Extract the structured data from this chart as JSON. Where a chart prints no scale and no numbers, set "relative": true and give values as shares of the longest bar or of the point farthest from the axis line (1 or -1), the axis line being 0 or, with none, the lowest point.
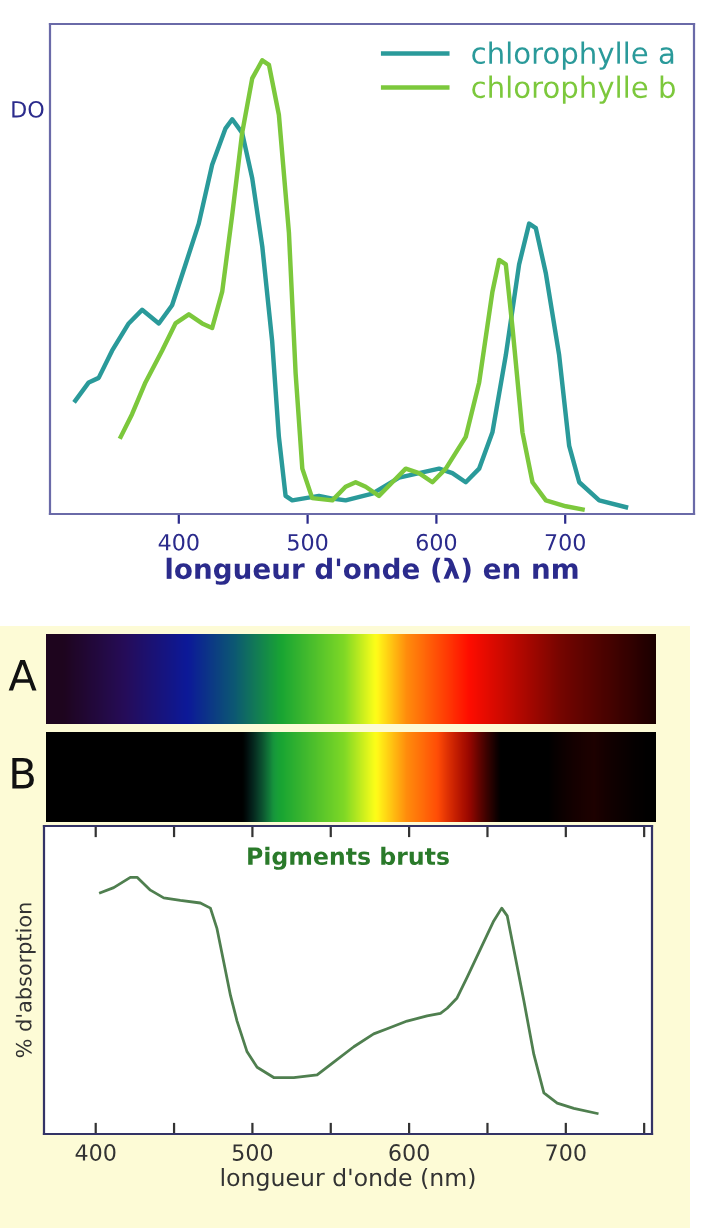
{
  "chart_data": [
    {
      "type": "line",
      "relative": true,
      "xlabel": "longueur d'onde (λ) en nm",
      "ylabel": "DO",
      "xlim": [
        300,
        800
      ],
      "xticks": [
        400,
        500,
        600,
        700
      ],
      "legend": "top right",
      "grid": false,
      "series": [
        {
          "name": "chlorophylle a",
          "color": "#2a9a9a",
          "x": [
            319.7,
            330.1,
            337.8,
            348.2,
            361.1,
            371.5,
            384.5,
            394.8,
            405.2,
            415.5,
            425.9,
            436.3,
            441.5,
            449.2,
            457.0,
            464.8,
            472.5,
            477.7,
            482.9,
            488.1,
            498.4,
            508.8,
            519.2,
            529.5,
            550.3,
            571.0,
            586.5,
            602.1,
            612.4,
            622.8,
            633.2,
            643.5,
            653.9,
            664.2,
            672.0,
            677.2,
            685.0,
            695.3,
            703.1,
            710.9,
            726.4,
            747.2
          ],
          "values": [
            0.25,
            0.29,
            0.3,
            0.36,
            0.42,
            0.45,
            0.42,
            0.46,
            0.55,
            0.64,
            0.77,
            0.85,
            0.87,
            0.84,
            0.74,
            0.59,
            0.38,
            0.17,
            0.04,
            0.03,
            0.035,
            0.04,
            0.034,
            0.03,
            0.045,
            0.08,
            0.09,
            0.1,
            0.09,
            0.07,
            0.1,
            0.18,
            0.35,
            0.55,
            0.64,
            0.63,
            0.53,
            0.35,
            0.15,
            0.07,
            0.03,
            0.015
          ]
        },
        {
          "name": "chlorophylle b",
          "color": "#7cc83c",
          "x": [
            354.9,
            363.7,
            374.1,
            387.0,
            397.4,
            407.8,
            418.1,
            425.9,
            433.7,
            441.5,
            449.2,
            457.0,
            464.8,
            470.0,
            477.7,
            485.5,
            490.7,
            495.9,
            503.6,
            519.2,
            529.5,
            537.3,
            545.1,
            555.4,
            565.8,
            576.2,
            586.5,
            596.9,
            607.3,
            622.8,
            633.2,
            643.5,
            648.7,
            653.9,
            659.1,
            666.8,
            674.6,
            685.0,
            700.5,
            713.5
          ],
          "values": [
            0.17,
            0.22,
            0.29,
            0.36,
            0.42,
            0.44,
            0.42,
            0.41,
            0.49,
            0.66,
            0.84,
            0.96,
            1,
            0.99,
            0.88,
            0.62,
            0.31,
            0.1,
            0.035,
            0.03,
            0.06,
            0.07,
            0.06,
            0.04,
            0.07,
            0.1,
            0.09,
            0.07,
            0.1,
            0.17,
            0.29,
            0.49,
            0.56,
            0.55,
            0.41,
            0.18,
            0.07,
            0.03,
            0.017,
            0.01
          ]
        }
      ]
    },
    {
      "type": "line",
      "relative": true,
      "title": "Pigments bruts",
      "xlabel": "longueur d'onde (nm)",
      "ylabel": "% d'absorption",
      "xlim": [
        367,
        755
      ],
      "xticks": [
        400,
        {
          "value": 450,
          "label": null
        },
        500,
        {
          "value": 550,
          "label": null
        },
        600,
        {
          "value": 650,
          "label": null
        },
        700,
        {
          "value": 750,
          "label": null
        }
      ],
      "grid": false,
      "legend": false,
      "annotations": [
        "A",
        "B"
      ],
      "series": [
        {
          "color": "#4f7f4f",
          "x": [
            403.0,
            411.5,
            422.1,
            426.4,
            434.9,
            443.4,
            454.0,
            466.8,
            473.2,
            477.4,
            481.7,
            486.0,
            490.2,
            496.6,
            503.0,
            513.6,
            526.4,
            541.3,
            551.9,
            564.7,
            577.4,
            586.0,
            598.7,
            611.5,
            620.0,
            624.3,
            630.6,
            637.0,
            645.5,
            654.0,
            659.1,
            662.6,
            666.8,
            673.2,
            679.6,
            686.0,
            694.5,
            705.1,
            720.0
          ],
          "values": [
            0.94,
            0.96,
            1,
            1,
            0.95,
            0.92,
            0.91,
            0.9,
            0.88,
            0.8,
            0.67,
            0.54,
            0.44,
            0.32,
            0.26,
            0.22,
            0.22,
            0.23,
            0.28,
            0.34,
            0.39,
            0.41,
            0.44,
            0.46,
            0.47,
            0.49,
            0.53,
            0.61,
            0.72,
            0.83,
            0.88,
            0.85,
            0.72,
            0.52,
            0.31,
            0.16,
            0.12,
            0.1,
            0.08
          ]
        }
      ]
    }
  ]
}
